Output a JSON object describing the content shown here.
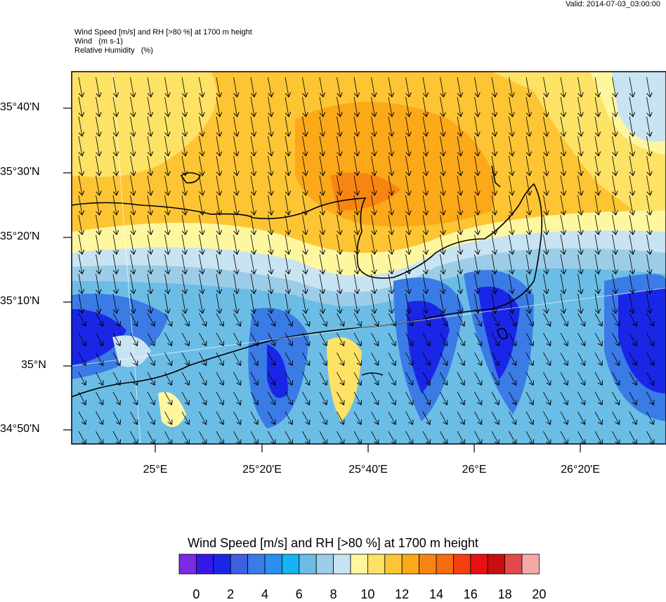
{
  "valid_time": "Valid: 2014-07-03_03:00:00",
  "header": {
    "line1": "Wind Speed [m/s] and RH [>80 %] at 1700 m height",
    "line2": "Wind   (m s-1)",
    "line3": "Relative Humidity   (%)"
  },
  "map": {
    "lat_labels": [
      "35°40'N",
      "35°30'N",
      "35°20'N",
      "35°10'N",
      "35°N",
      "34°50'N"
    ],
    "lon_labels": [
      "25°E",
      "25°20'E",
      "25°40'E",
      "26°E",
      "26°20'E"
    ]
  },
  "colorbar": {
    "title": "Wind Speed [m/s] and RH [>80 %] at 1700 m height",
    "colors": [
      "#7b2ae6",
      "#3419e8",
      "#1a26e6",
      "#3d5fe0",
      "#3a7be6",
      "#2a8ff0",
      "#15b5f5",
      "#6bbde6",
      "#9ccde8",
      "#c8e4f2",
      "#fff7a0",
      "#fee266",
      "#fdc534",
      "#fba919",
      "#f88512",
      "#f66c12",
      "#f4400e",
      "#e81012",
      "#c80e0e",
      "#e04a4a",
      "#f5a8a8"
    ],
    "labels": [
      "0",
      "2",
      "4",
      "6",
      "8",
      "10",
      "12",
      "14",
      "16",
      "18",
      "20"
    ]
  }
}
